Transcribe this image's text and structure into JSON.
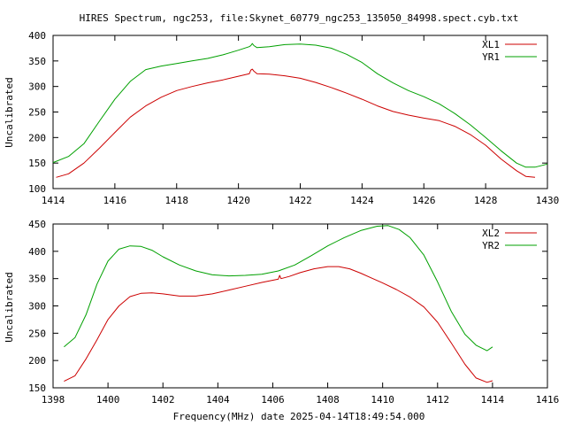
{
  "figure": {
    "title": "HIRES Spectrum, ngc253, file:Skynet_60779_ngc253_135050_84998.spect.cyb.txt",
    "xlabel": "Frequency(MHz) date 2025-04-14T18:49:54.000"
  },
  "colors": {
    "red": "#cc0000",
    "green": "#00a000",
    "frame": "#000000"
  },
  "chart_data": [
    {
      "type": "line",
      "xlabel": "",
      "ylabel": "Uncalibrated",
      "xlim": [
        1414,
        1430
      ],
      "ylim": [
        100,
        400
      ],
      "xticks": [
        1414,
        1416,
        1418,
        1420,
        1422,
        1424,
        1426,
        1428,
        1430
      ],
      "yticks": [
        100,
        150,
        200,
        250,
        300,
        350,
        400
      ],
      "grid": false,
      "legend": "top-right",
      "series": [
        {
          "name": "XL1",
          "color": "#cc0000",
          "points": [
            [
              1414.1,
              122
            ],
            [
              1414.5,
              129
            ],
            [
              1415,
              150
            ],
            [
              1415.5,
              179
            ],
            [
              1416,
              210
            ],
            [
              1416.5,
              240
            ],
            [
              1417,
              262
            ],
            [
              1417.5,
              279
            ],
            [
              1418,
              292
            ],
            [
              1418.5,
              300
            ],
            [
              1419,
              307
            ],
            [
              1419.5,
              313
            ],
            [
              1420,
              320
            ],
            [
              1420.35,
              325
            ],
            [
              1420.4,
              332
            ],
            [
              1420.45,
              334
            ],
            [
              1420.5,
              330
            ],
            [
              1420.6,
              325
            ],
            [
              1421,
              324
            ],
            [
              1421.5,
              321
            ],
            [
              1422,
              316
            ],
            [
              1422.5,
              308
            ],
            [
              1423,
              298
            ],
            [
              1423.5,
              287
            ],
            [
              1424,
              275
            ],
            [
              1424.5,
              262
            ],
            [
              1425,
              251
            ],
            [
              1425.5,
              244
            ],
            [
              1426,
              238
            ],
            [
              1426.5,
              233
            ],
            [
              1427,
              222
            ],
            [
              1427.5,
              206
            ],
            [
              1428,
              185
            ],
            [
              1428.5,
              158
            ],
            [
              1429,
              135
            ],
            [
              1429.3,
              124
            ],
            [
              1429.6,
              122
            ]
          ]
        },
        {
          "name": "YR1",
          "color": "#00a000",
          "points": [
            [
              1414,
              151
            ],
            [
              1414.5,
              163
            ],
            [
              1415,
              188
            ],
            [
              1415.5,
              232
            ],
            [
              1416,
              275
            ],
            [
              1416.5,
              310
            ],
            [
              1417,
              333
            ],
            [
              1417.5,
              340
            ],
            [
              1418,
              345
            ],
            [
              1418.5,
              350
            ],
            [
              1419,
              355
            ],
            [
              1419.5,
              362
            ],
            [
              1420,
              371
            ],
            [
              1420.35,
              378
            ],
            [
              1420.4,
              380
            ],
            [
              1420.45,
              384
            ],
            [
              1420.5,
              380
            ],
            [
              1420.6,
              376
            ],
            [
              1421,
              378
            ],
            [
              1421.5,
              382
            ],
            [
              1422,
              383
            ],
            [
              1422.5,
              381
            ],
            [
              1423,
              375
            ],
            [
              1423.5,
              363
            ],
            [
              1424,
              347
            ],
            [
              1424.5,
              325
            ],
            [
              1425,
              307
            ],
            [
              1425.5,
              292
            ],
            [
              1426,
              280
            ],
            [
              1426.5,
              266
            ],
            [
              1427,
              247
            ],
            [
              1427.5,
              225
            ],
            [
              1428,
              200
            ],
            [
              1428.5,
              174
            ],
            [
              1429,
              150
            ],
            [
              1429.3,
              142
            ],
            [
              1429.6,
              142
            ],
            [
              1430,
              148
            ]
          ]
        }
      ]
    },
    {
      "type": "line",
      "xlabel": "Frequency(MHz) date 2025-04-14T18:49:54.000",
      "ylabel": "Uncalibrated",
      "xlim": [
        1398,
        1416
      ],
      "ylim": [
        150,
        450
      ],
      "xticks": [
        1398,
        1400,
        1402,
        1404,
        1406,
        1408,
        1410,
        1412,
        1414,
        1416
      ],
      "yticks": [
        150,
        200,
        250,
        300,
        350,
        400,
        450
      ],
      "grid": false,
      "legend": "top-right",
      "series": [
        {
          "name": "XL2",
          "color": "#cc0000",
          "points": [
            [
              1398.4,
              162
            ],
            [
              1398.8,
              172
            ],
            [
              1399.2,
              203
            ],
            [
              1399.6,
              238
            ],
            [
              1400,
              275
            ],
            [
              1400.4,
              300
            ],
            [
              1400.8,
              317
            ],
            [
              1401.2,
              323
            ],
            [
              1401.6,
              324
            ],
            [
              1402,
              322
            ],
            [
              1402.6,
              318
            ],
            [
              1403.2,
              318
            ],
            [
              1403.8,
              322
            ],
            [
              1404.4,
              329
            ],
            [
              1405,
              336
            ],
            [
              1405.6,
              343
            ],
            [
              1406.2,
              349
            ],
            [
              1406.25,
              356
            ],
            [
              1406.3,
              350
            ],
            [
              1406.6,
              354
            ],
            [
              1407,
              361
            ],
            [
              1407.5,
              368
            ],
            [
              1408,
              372
            ],
            [
              1408.4,
              372
            ],
            [
              1408.8,
              368
            ],
            [
              1409.2,
              360
            ],
            [
              1409.6,
              351
            ],
            [
              1410,
              342
            ],
            [
              1410.5,
              330
            ],
            [
              1411,
              316
            ],
            [
              1411.5,
              298
            ],
            [
              1412,
              270
            ],
            [
              1412.5,
              232
            ],
            [
              1413,
              193
            ],
            [
              1413.4,
              168
            ],
            [
              1413.8,
              160
            ],
            [
              1414,
              163
            ]
          ]
        },
        {
          "name": "YR2",
          "color": "#00a000",
          "points": [
            [
              1398.4,
              225
            ],
            [
              1398.8,
              242
            ],
            [
              1399.2,
              284
            ],
            [
              1399.6,
              340
            ],
            [
              1400,
              382
            ],
            [
              1400.4,
              404
            ],
            [
              1400.8,
              410
            ],
            [
              1401.2,
              409
            ],
            [
              1401.6,
              402
            ],
            [
              1402,
              390
            ],
            [
              1402.6,
              375
            ],
            [
              1403.2,
              364
            ],
            [
              1403.8,
              357
            ],
            [
              1404.4,
              355
            ],
            [
              1405,
              356
            ],
            [
              1405.6,
              358
            ],
            [
              1406.2,
              364
            ],
            [
              1406.8,
              375
            ],
            [
              1407.4,
              392
            ],
            [
              1408,
              410
            ],
            [
              1408.6,
              425
            ],
            [
              1409.2,
              438
            ],
            [
              1409.8,
              446
            ],
            [
              1410.2,
              447
            ],
            [
              1410.6,
              440
            ],
            [
              1411,
              425
            ],
            [
              1411.5,
              393
            ],
            [
              1412,
              344
            ],
            [
              1412.5,
              290
            ],
            [
              1413,
              248
            ],
            [
              1413.4,
              228
            ],
            [
              1413.8,
              218
            ],
            [
              1414,
              225
            ]
          ]
        }
      ]
    }
  ]
}
